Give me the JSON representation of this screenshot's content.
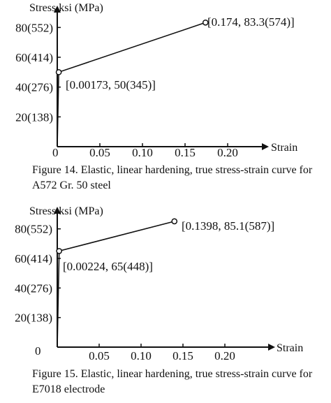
{
  "chart_data": [
    {
      "type": "line",
      "ylabel": "Stress ksi (MPa)",
      "xlabel": "Strain",
      "origin_label": "0",
      "x_ticks": [
        "0.05",
        "0.10",
        "0.15",
        "0.20"
      ],
      "y_ticks": [
        "20(138)",
        "40(276)",
        "60(414)",
        "80(552)"
      ],
      "series": [
        {
          "x": [
            0,
            0.00173,
            0.174
          ],
          "y": [
            0,
            50,
            83.3
          ]
        }
      ],
      "annotations": [
        "[0.00173, 50(345)]",
        "[0.174, 83.3(574)]"
      ],
      "xlim": [
        0,
        0.2
      ],
      "ylim": [
        0,
        80
      ],
      "grid": false,
      "caption": "Figure 14. Elastic, linear hardening, true stress-strain curve for A572 Gr. 50 steel"
    },
    {
      "type": "line",
      "ylabel": "Stress ksi (MPa)",
      "xlabel": "Strain",
      "origin_label": "0",
      "x_ticks": [
        "0.05",
        "0.10",
        "0.15",
        "0.20"
      ],
      "y_ticks": [
        "20(138)",
        "40(276)",
        "60(414)",
        "80(552)"
      ],
      "series": [
        {
          "x": [
            0,
            0.00224,
            0.1398
          ],
          "y": [
            0,
            65,
            85.1
          ]
        }
      ],
      "annotations": [
        "[0.00224, 65(448)]",
        "[0.1398, 85.1(587)]"
      ],
      "xlim": [
        0,
        0.2
      ],
      "ylim": [
        0,
        80
      ],
      "grid": false,
      "caption": "Figure 15. Elastic, linear hardening, true stress-strain curve for E7018 electrode"
    }
  ]
}
